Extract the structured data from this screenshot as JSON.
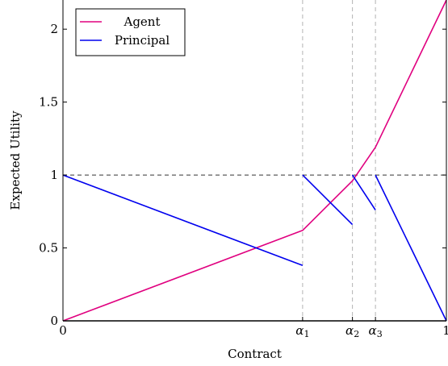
{
  "chart_data": {
    "type": "line",
    "xlabel": "Contract",
    "ylabel": "Expected Utility",
    "xlim": [
      0,
      1
    ],
    "ylim": [
      0,
      2.2
    ],
    "x_ticks": [
      {
        "value": 0,
        "label": "0"
      },
      {
        "value": 0.625,
        "label": "α1"
      },
      {
        "value": 0.755,
        "label": "α2"
      },
      {
        "value": 0.815,
        "label": "α3"
      },
      {
        "value": 1,
        "label": "1"
      }
    ],
    "y_ticks": [
      {
        "value": 0,
        "label": "0"
      },
      {
        "value": 0.5,
        "label": "0.5"
      },
      {
        "value": 1,
        "label": "1"
      },
      {
        "value": 1.5,
        "label": "1.5"
      },
      {
        "value": 2,
        "label": "2"
      }
    ],
    "reference_lines": {
      "horizontal_y": 1,
      "vertical_x": [
        0.625,
        0.755,
        0.815
      ]
    },
    "legend_position": "top-left",
    "series": [
      {
        "name": "Agent",
        "color": "#e0007f",
        "segments": [
          [
            [
              0,
              0
            ],
            [
              0.625,
              0.62
            ],
            [
              0.755,
              0.96
            ],
            [
              0.815,
              1.19
            ],
            [
              1,
              2.2
            ]
          ]
        ]
      },
      {
        "name": "Principal",
        "color": "#0000ee",
        "segments": [
          [
            [
              0,
              1
            ],
            [
              0.625,
              0.38
            ]
          ],
          [
            [
              0.625,
              1
            ],
            [
              0.755,
              0.66
            ]
          ],
          [
            [
              0.755,
              1
            ],
            [
              0.815,
              0.76
            ]
          ],
          [
            [
              0.815,
              1
            ],
            [
              1,
              0
            ]
          ]
        ]
      }
    ]
  }
}
